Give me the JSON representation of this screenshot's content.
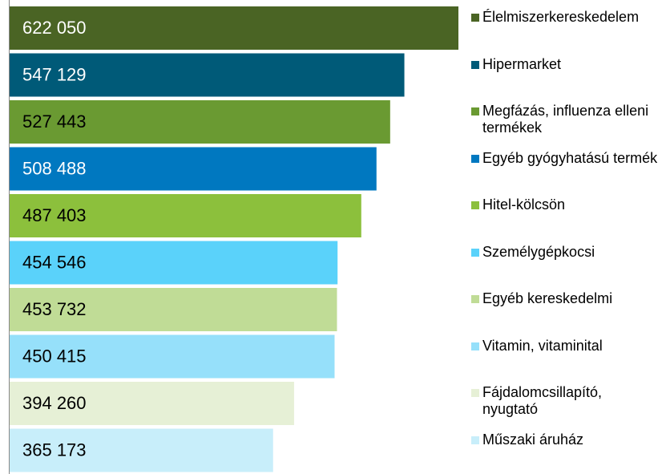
{
  "chart_data": {
    "type": "bar",
    "orientation": "horizontal",
    "series": [
      {
        "name": "Élelmiszerkereskedelem",
        "color": "#4a6424",
        "value": 622050,
        "value_label": "622 050"
      },
      {
        "name": "Hipermarket",
        "color": "#005a78",
        "value": 547129,
        "value_label": "547 129"
      },
      {
        "name": "Megfázás, influenza elleni termékek",
        "color": "#6a9a32",
        "value": 527443,
        "value_label": "527 443"
      },
      {
        "name": "Egyéb gyógyhatású termék",
        "color": "#0078c0",
        "value": 508488,
        "value_label": "508 488"
      },
      {
        "name": "Hitel-kölcsön",
        "color": "#8cc03c",
        "value": 487403,
        "value_label": "487 403"
      },
      {
        "name": "Személygépkocsi",
        "color": "#5ad2fa",
        "value": 454546,
        "value_label": "454 546"
      },
      {
        "name": "Egyéb kereskedelmi",
        "color": "#c0dc96",
        "value": 453732,
        "value_label": "453 732"
      },
      {
        "name": "Vitamin, vitaminital",
        "color": "#96e0fa",
        "value": 450415,
        "value_label": "450 415"
      },
      {
        "name": "Fájdalomcsillapító, nyugtató",
        "color": "#e6f0d6",
        "value": 394260,
        "value_label": "394 260"
      },
      {
        "name": "Műszaki áruház",
        "color": "#c8eefa",
        "value": 365173,
        "value_label": "365 173"
      }
    ],
    "legend": "right"
  }
}
